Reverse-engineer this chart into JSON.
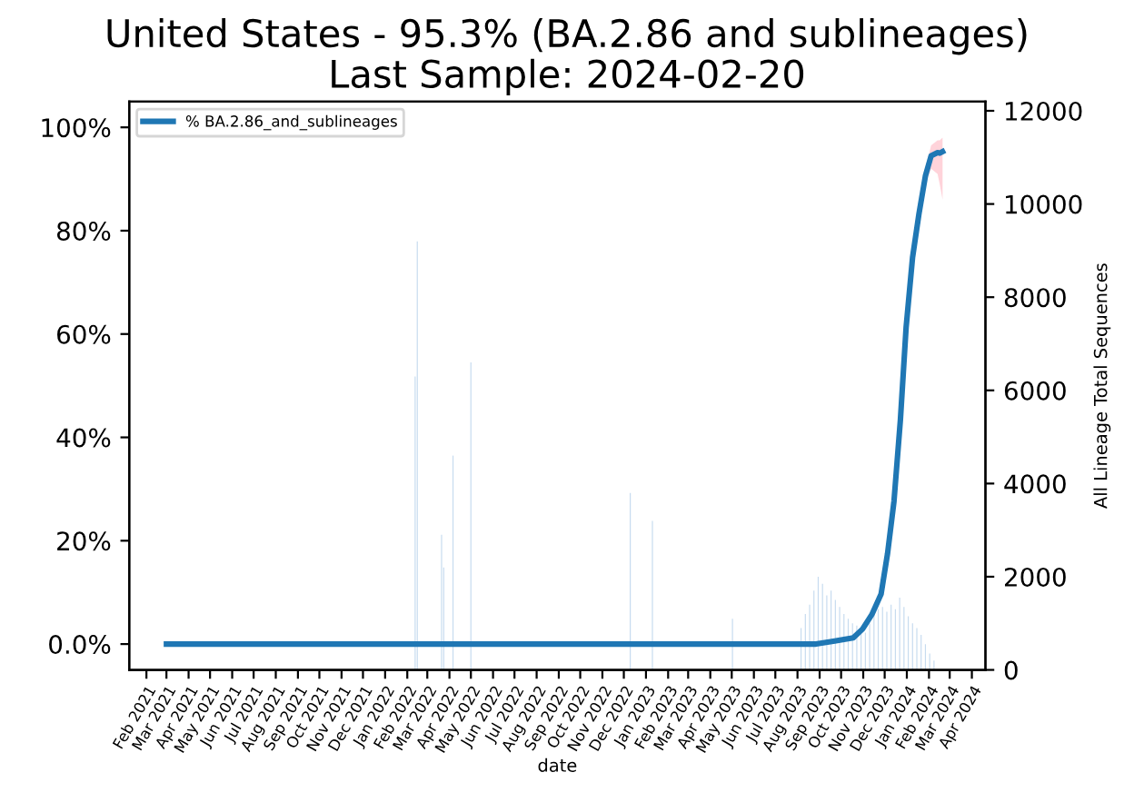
{
  "chart_data": {
    "type": "line",
    "title": "United States - 95.3% (BA.2.86 and sublineages)",
    "subtitle": "Last Sample: 2024-02-20",
    "xlabel": "date",
    "y2label": "All Lineage Total Sequences",
    "xlim": [
      "2021-01-08",
      "2024-04-20"
    ],
    "xticks": [
      {
        "value": "2021-02-01",
        "label": "Feb\n2021"
      },
      {
        "value": "2021-03-01",
        "label": "Mar\n2021"
      },
      {
        "value": "2021-04-01",
        "label": "Apr\n2021"
      },
      {
        "value": "2021-05-01",
        "label": "May\n2021"
      },
      {
        "value": "2021-06-01",
        "label": "Jun\n2021"
      },
      {
        "value": "2021-07-01",
        "label": "Jul\n2021"
      },
      {
        "value": "2021-08-01",
        "label": "Aug\n2021"
      },
      {
        "value": "2021-09-01",
        "label": "Sep\n2021"
      },
      {
        "value": "2021-10-01",
        "label": "Oct\n2021"
      },
      {
        "value": "2021-11-01",
        "label": "Nov\n2021"
      },
      {
        "value": "2021-12-01",
        "label": "Dec\n2021"
      },
      {
        "value": "2022-01-01",
        "label": "Jan\n2022"
      },
      {
        "value": "2022-02-01",
        "label": "Feb\n2022"
      },
      {
        "value": "2022-03-01",
        "label": "Mar\n2022"
      },
      {
        "value": "2022-04-01",
        "label": "Apr\n2022"
      },
      {
        "value": "2022-05-01",
        "label": "May\n2022"
      },
      {
        "value": "2022-06-01",
        "label": "Jun\n2022"
      },
      {
        "value": "2022-07-01",
        "label": "Jul\n2022"
      },
      {
        "value": "2022-08-01",
        "label": "Aug\n2022"
      },
      {
        "value": "2022-09-01",
        "label": "Sep\n2022"
      },
      {
        "value": "2022-10-01",
        "label": "Oct\n2022"
      },
      {
        "value": "2022-11-01",
        "label": "Nov\n2022"
      },
      {
        "value": "2022-12-01",
        "label": "Dec\n2022"
      },
      {
        "value": "2023-01-01",
        "label": "Jan\n2023"
      },
      {
        "value": "2023-02-01",
        "label": "Feb\n2023"
      },
      {
        "value": "2023-03-01",
        "label": "Mar\n2023"
      },
      {
        "value": "2023-04-01",
        "label": "Apr\n2023"
      },
      {
        "value": "2023-05-01",
        "label": "May\n2023"
      },
      {
        "value": "2023-06-01",
        "label": "Jun\n2023"
      },
      {
        "value": "2023-07-01",
        "label": "Jul\n2023"
      },
      {
        "value": "2023-08-01",
        "label": "Aug\n2023"
      },
      {
        "value": "2023-09-01",
        "label": "Sep\n2023"
      },
      {
        "value": "2023-10-01",
        "label": "Oct\n2023"
      },
      {
        "value": "2023-11-01",
        "label": "Nov\n2023"
      },
      {
        "value": "2023-12-01",
        "label": "Dec\n2023"
      },
      {
        "value": "2024-01-01",
        "label": "Jan\n2024"
      },
      {
        "value": "2024-02-01",
        "label": "Feb\n2024"
      },
      {
        "value": "2024-03-01",
        "label": "Mar\n2024"
      },
      {
        "value": "2024-04-01",
        "label": "Apr\n2024"
      }
    ],
    "ylim": [
      -5,
      105
    ],
    "yticks": [
      {
        "value": 0,
        "label": "0.0%"
      },
      {
        "value": 20,
        "label": "20%"
      },
      {
        "value": 40,
        "label": "40%"
      },
      {
        "value": 60,
        "label": "60%"
      },
      {
        "value": 80,
        "label": "80%"
      },
      {
        "value": 100,
        "label": "100%"
      }
    ],
    "y2lim": [
      0,
      12200
    ],
    "y2ticks": [
      0,
      2000,
      4000,
      6000,
      8000,
      10000,
      12000
    ],
    "legend": "top left",
    "grid": false,
    "series": [
      {
        "name": "% BA.2.86_and_sublineages",
        "color": "#1f77b4",
        "x": [
          "2021-03-01",
          "2023-08-27",
          "2023-09-22",
          "2023-10-18",
          "2023-10-31",
          "2023-11-13",
          "2023-11-26",
          "2023-12-05",
          "2023-12-14",
          "2023-12-23",
          "2023-12-31",
          "2024-01-09",
          "2024-01-18",
          "2024-01-27",
          "2024-02-04",
          "2024-02-13",
          "2024-02-16",
          "2024-02-20"
        ],
        "values": [
          0,
          0,
          0.6,
          1.2,
          2.9,
          5.7,
          9.7,
          17.5,
          27.6,
          43.4,
          61.3,
          74.8,
          83.3,
          90.6,
          94.5,
          95.1,
          95.0,
          95.3
        ],
        "lower": [
          0,
          0,
          0.5,
          1.0,
          2.5,
          5.0,
          9.0,
          16.5,
          26.5,
          42.0,
          60.0,
          73.5,
          82.0,
          89.0,
          92.0,
          91.0,
          89.0,
          86.0
        ],
        "upper": [
          0,
          0,
          0.7,
          1.4,
          3.3,
          6.5,
          10.5,
          18.5,
          28.7,
          44.8,
          62.6,
          76.0,
          84.6,
          92.0,
          96.5,
          97.5,
          97.5,
          98.0
        ]
      },
      {
        "type": "bar",
        "axis": "y2",
        "color": "#c6dbef",
        "x": [
          "2022-02-12",
          "2022-02-15",
          "2022-03-21",
          "2022-03-24",
          "2022-04-06",
          "2022-05-01",
          "2022-12-10",
          "2023-01-10",
          "2023-05-02",
          "2023-08-06",
          "2023-08-12",
          "2023-08-18",
          "2023-08-24",
          "2023-08-30",
          "2023-09-05",
          "2023-09-11",
          "2023-09-17",
          "2023-09-23",
          "2023-09-29",
          "2023-10-05",
          "2023-10-11",
          "2023-10-17",
          "2023-10-23",
          "2023-10-29",
          "2023-11-04",
          "2023-11-10",
          "2023-11-16",
          "2023-11-22",
          "2023-11-28",
          "2023-12-04",
          "2023-12-10",
          "2023-12-16",
          "2023-12-22",
          "2023-12-28",
          "2024-01-03",
          "2024-01-09",
          "2024-01-15",
          "2024-01-21",
          "2024-01-27",
          "2024-02-02",
          "2024-02-08"
        ],
        "values": [
          6300,
          9200,
          2900,
          2200,
          4600,
          6600,
          3800,
          3200,
          1100,
          900,
          1200,
          1400,
          1700,
          2000,
          1850,
          1600,
          1700,
          1500,
          1350,
          1200,
          1100,
          1000,
          950,
          850,
          800,
          1000,
          1200,
          1300,
          1350,
          1250,
          1400,
          1300,
          1550,
          1350,
          1150,
          1000,
          900,
          750,
          550,
          350,
          200
        ]
      }
    ]
  }
}
